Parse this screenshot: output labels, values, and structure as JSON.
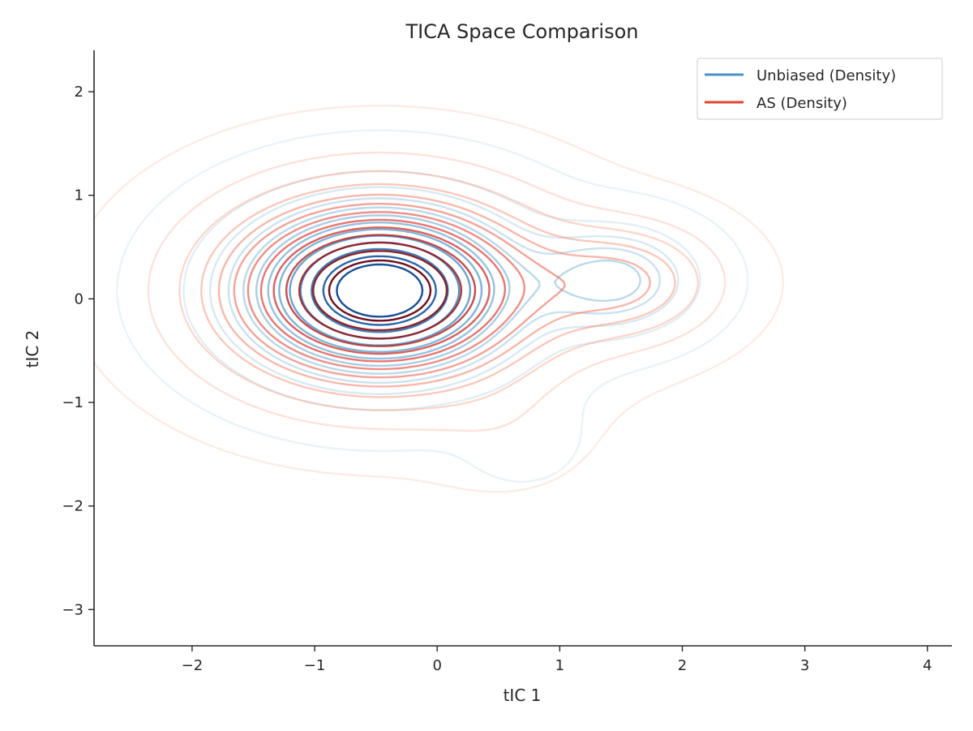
{
  "chart_data": {
    "type": "contour",
    "title": "TICA Space Comparison",
    "xlabel": "tIC 1",
    "ylabel": "tIC 2",
    "xlim": [
      -2.8,
      4.2
    ],
    "ylim": [
      -3.35,
      2.4
    ],
    "x_ticks": [
      -2,
      -1,
      0,
      1,
      2,
      3,
      4
    ],
    "y_ticks": [
      -3,
      -2,
      -1,
      0,
      1,
      2
    ],
    "x_tick_labels": [
      "−2",
      "−1",
      "0",
      "1",
      "2",
      "3",
      "4"
    ],
    "y_tick_labels": [
      "−3",
      "−2",
      "−1",
      "0",
      "1",
      "2"
    ],
    "grid": false,
    "legend_position": "top-right",
    "series": [
      {
        "name": "Unbiased (Density)",
        "color": "#4a90c8",
        "colormap": "Blues",
        "levels": 13,
        "components": [
          {
            "center": [
              -0.47,
              0.08
            ],
            "sigma": [
              0.72,
              0.52
            ],
            "weight": 1.0
          },
          {
            "center": [
              1.45,
              0.18
            ],
            "sigma": [
              0.42,
              0.32
            ],
            "weight": 0.33
          },
          {
            "center": [
              0.7,
              -1.35
            ],
            "sigma": [
              0.32,
              0.3
            ],
            "weight": 0.03
          }
        ],
        "annotation": ""
      },
      {
        "name": "AS (Density)",
        "color": "#e3432e",
        "colormap": "Reds",
        "levels": 13,
        "components": [
          {
            "center": [
              -0.47,
              0.08
            ],
            "sigma": [
              0.85,
              0.6
            ],
            "weight": 1.0
          },
          {
            "center": [
              1.55,
              0.16
            ],
            "sigma": [
              0.5,
              0.37
            ],
            "weight": 0.29
          },
          {
            "center": [
              0.55,
              -1.3
            ],
            "sigma": [
              0.4,
              0.33
            ],
            "weight": 0.04
          }
        ],
        "annotation": ""
      }
    ]
  }
}
